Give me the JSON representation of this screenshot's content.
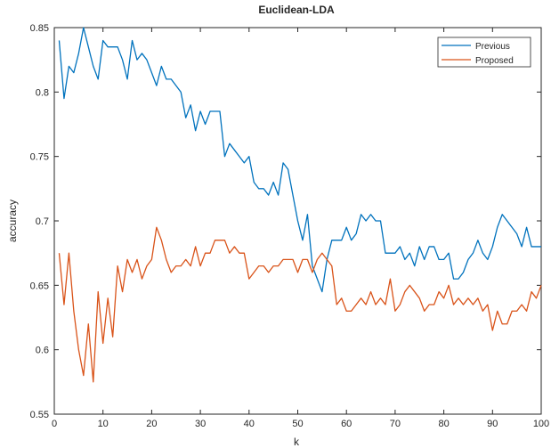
{
  "chart_data": {
    "type": "line",
    "title": "Euclidean-LDA",
    "xlabel": "k",
    "ylabel": "accuracy",
    "xlim": [
      0,
      100
    ],
    "ylim": [
      0.55,
      0.85
    ],
    "xticks": [
      0,
      10,
      20,
      30,
      40,
      50,
      60,
      70,
      80,
      90,
      100
    ],
    "yticks": [
      0.55,
      0.6,
      0.65,
      0.7,
      0.75,
      0.8,
      0.85
    ],
    "xtick_labels": [
      "0",
      "10",
      "20",
      "30",
      "40",
      "50",
      "60",
      "70",
      "80",
      "90",
      "100"
    ],
    "ytick_labels": [
      "0.55",
      "0.6",
      "0.65",
      "0.7",
      "0.75",
      "0.8",
      "0.85"
    ],
    "grid": false,
    "legend_position": "top-right",
    "series": [
      {
        "name": "Previous",
        "color": "#0072BD",
        "x": [
          1,
          2,
          3,
          4,
          5,
          6,
          7,
          8,
          9,
          10,
          11,
          12,
          13,
          14,
          15,
          16,
          17,
          18,
          19,
          20,
          21,
          22,
          23,
          24,
          25,
          26,
          27,
          28,
          29,
          30,
          31,
          32,
          33,
          34,
          35,
          36,
          37,
          38,
          39,
          40,
          41,
          42,
          43,
          44,
          45,
          46,
          47,
          48,
          49,
          50,
          51,
          52,
          53,
          54,
          55,
          56,
          57,
          58,
          59,
          60,
          61,
          62,
          63,
          64,
          65,
          66,
          67,
          68,
          69,
          70,
          71,
          72,
          73,
          74,
          75,
          76,
          77,
          78,
          79,
          80,
          81,
          82,
          83,
          84,
          85,
          86,
          87,
          88,
          89,
          90,
          91,
          92,
          93,
          94,
          95,
          96,
          97,
          98,
          99,
          100
        ],
        "values": [
          0.84,
          0.795,
          0.82,
          0.815,
          0.83,
          0.85,
          0.835,
          0.82,
          0.81,
          0.84,
          0.835,
          0.835,
          0.835,
          0.825,
          0.81,
          0.84,
          0.825,
          0.83,
          0.825,
          0.815,
          0.805,
          0.82,
          0.81,
          0.81,
          0.805,
          0.8,
          0.78,
          0.79,
          0.77,
          0.785,
          0.775,
          0.785,
          0.785,
          0.785,
          0.75,
          0.76,
          0.755,
          0.75,
          0.745,
          0.75,
          0.73,
          0.725,
          0.725,
          0.72,
          0.73,
          0.72,
          0.745,
          0.74,
          0.72,
          0.7,
          0.685,
          0.705,
          0.665,
          0.655,
          0.645,
          0.67,
          0.685,
          0.685,
          0.685,
          0.695,
          0.685,
          0.69,
          0.705,
          0.7,
          0.705,
          0.7,
          0.7,
          0.675,
          0.675,
          0.675,
          0.68,
          0.67,
          0.675,
          0.665,
          0.68,
          0.67,
          0.68,
          0.68,
          0.67,
          0.67,
          0.675,
          0.655,
          0.655,
          0.66,
          0.67,
          0.675,
          0.685,
          0.675,
          0.67,
          0.68,
          0.695,
          0.705,
          0.7,
          0.695,
          0.69,
          0.68,
          0.695,
          0.68,
          0.68,
          0.68
        ]
      },
      {
        "name": "Proposed",
        "color": "#D95319",
        "x": [
          1,
          2,
          3,
          4,
          5,
          6,
          7,
          8,
          9,
          10,
          11,
          12,
          13,
          14,
          15,
          16,
          17,
          18,
          19,
          20,
          21,
          22,
          23,
          24,
          25,
          26,
          27,
          28,
          29,
          30,
          31,
          32,
          33,
          34,
          35,
          36,
          37,
          38,
          39,
          40,
          41,
          42,
          43,
          44,
          45,
          46,
          47,
          48,
          49,
          50,
          51,
          52,
          53,
          54,
          55,
          56,
          57,
          58,
          59,
          60,
          61,
          62,
          63,
          64,
          65,
          66,
          67,
          68,
          69,
          70,
          71,
          72,
          73,
          74,
          75,
          76,
          77,
          78,
          79,
          80,
          81,
          82,
          83,
          84,
          85,
          86,
          87,
          88,
          89,
          90,
          91,
          92,
          93,
          94,
          95,
          96,
          97,
          98,
          99,
          100
        ],
        "values": [
          0.675,
          0.635,
          0.675,
          0.63,
          0.6,
          0.58,
          0.62,
          0.575,
          0.645,
          0.605,
          0.64,
          0.61,
          0.665,
          0.645,
          0.67,
          0.66,
          0.67,
          0.655,
          0.665,
          0.67,
          0.695,
          0.685,
          0.67,
          0.66,
          0.665,
          0.665,
          0.67,
          0.665,
          0.68,
          0.665,
          0.675,
          0.675,
          0.685,
          0.685,
          0.685,
          0.675,
          0.68,
          0.675,
          0.675,
          0.655,
          0.66,
          0.665,
          0.665,
          0.66,
          0.665,
          0.665,
          0.67,
          0.67,
          0.67,
          0.66,
          0.67,
          0.67,
          0.66,
          0.67,
          0.675,
          0.67,
          0.665,
          0.635,
          0.64,
          0.63,
          0.63,
          0.635,
          0.64,
          0.635,
          0.645,
          0.635,
          0.64,
          0.635,
          0.655,
          0.63,
          0.635,
          0.645,
          0.65,
          0.645,
          0.64,
          0.63,
          0.635,
          0.635,
          0.645,
          0.64,
          0.65,
          0.635,
          0.64,
          0.635,
          0.64,
          0.635,
          0.64,
          0.63,
          0.635,
          0.615,
          0.63,
          0.62,
          0.62,
          0.63,
          0.63,
          0.635,
          0.63,
          0.645,
          0.64,
          0.65
        ]
      }
    ]
  }
}
